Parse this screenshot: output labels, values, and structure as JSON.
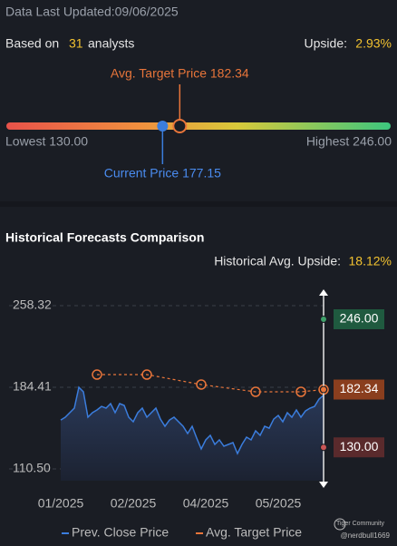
{
  "header": {
    "last_updated": "Data Last Updated:09/06/2025",
    "based_on": "Based on",
    "analyst_count": 31,
    "analysts": "analysts",
    "upside_label": "Upside:",
    "upside": {
      "value": 2.93,
      "label": "2.93%"
    }
  },
  "gauge": {
    "low": 130,
    "low_label": "Lowest 130.00",
    "high": 246,
    "high_label": "Highest 246.00",
    "current": 177.15,
    "current_label": "Current Price 177.15",
    "target": 182.34,
    "target_label": "Avg. Target Price 182.34"
  },
  "chart_data": {
    "type": "line",
    "title": "Historical Forecasts Comparison",
    "subtitle_label": "Historical Avg. Upside:",
    "subtitle_value": {
      "value": 18.12,
      "label": "18.12%"
    },
    "categories": [
      "01/2025",
      null,
      null,
      null,
      null,
      null,
      null,
      null,
      null,
      null,
      null,
      null,
      null,
      null,
      null,
      null,
      "02/2025",
      null,
      null,
      null,
      null,
      null,
      null,
      null,
      null,
      null,
      null,
      null,
      null,
      null,
      null,
      null,
      "04/2025",
      null,
      null,
      null,
      null,
      null,
      null,
      null,
      null,
      null,
      null,
      null,
      null,
      null,
      null,
      null,
      "05/2025",
      null,
      null,
      null,
      null,
      null,
      null,
      null,
      null,
      null,
      null
    ],
    "series": [
      {
        "name": "Prev. Close Price",
        "color": "#3b7ddd",
        "values": [
          154.8,
          157.3,
          161.4,
          165.5,
          184.4,
          180.3,
          157.3,
          161.4,
          163.9,
          167.1,
          165.5,
          169.6,
          161.4,
          169.6,
          168.0,
          157.3,
          153.2,
          161.4,
          165.5,
          157.3,
          161.4,
          165.5,
          155.6,
          149.1,
          154.8,
          157.3,
          153.2,
          149.1,
          142.5,
          149.1,
          138.4,
          128.6,
          136.8,
          140.9,
          132.7,
          136.8,
          131.0,
          132.7,
          134.3,
          124.4,
          132.7,
          139.2,
          136.8,
          145.0,
          140.9,
          149.1,
          147.4,
          155.6,
          158.9,
          153.2,
          161.4,
          157.3,
          163.9,
          157.3,
          163.0,
          165.5,
          167.1,
          173.7,
          177.15
        ]
      },
      {
        "name": "Avg. Target Price",
        "color": "#e8753a",
        "x": [
          8,
          19,
          31,
          43,
          53,
          58
        ],
        "values": [
          195.9,
          195.9,
          186.9,
          180.3,
          180.3,
          182.34
        ]
      }
    ],
    "ylim": [
      99.82,
      272.28
    ],
    "yticks": [
      {
        "value": 110.5,
        "label": "110.50"
      },
      184.41,
      258.32
    ],
    "grid": true,
    "price_tags": [
      {
        "value": 246,
        "label": "246.00",
        "color": "#1f5a3f",
        "dot": "#3fa06a"
      },
      {
        "value": 182.34,
        "label": "182.34",
        "color": "#8a3e1e",
        "dot": "#e8753a"
      },
      {
        "value": 130,
        "label": "130.00",
        "color": "#5a2a2c",
        "dot": "#c95555"
      }
    ]
  },
  "watermark": {
    "brand": "Tiger Community",
    "user": "@nerdbull1669"
  }
}
